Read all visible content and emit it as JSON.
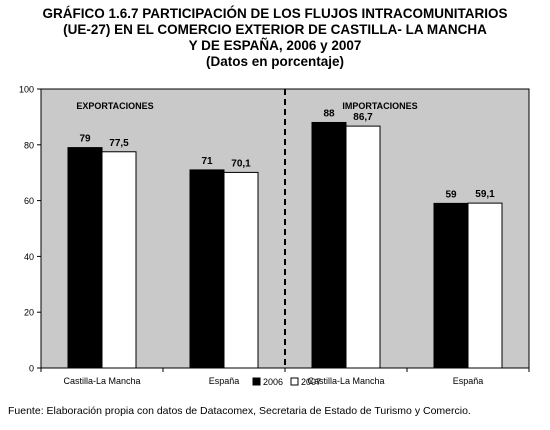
{
  "title_lines": [
    "GRÁFICO 1.6.7 PARTICIPACIÓN DE LOS FLUJOS INTRACOMUNITARIOS",
    "(UE-27) EN EL COMERCIO EXTERIOR DE CASTILLA- LA MANCHA",
    "Y DE ESPAÑA, 2006 y 2007",
    "(Datos en porcentaje)"
  ],
  "source": "Fuente: Elaboración propia con datos de Datacomex, Secretaria de Estado de Turismo y Comercio.",
  "chart_data": {
    "type": "bar",
    "ylim": [
      0,
      100
    ],
    "yticks": [
      0,
      20,
      40,
      60,
      80,
      100
    ],
    "grid": false,
    "legend_position": "bottom",
    "panels": [
      {
        "label": "EXPORTACIONES"
      },
      {
        "label": "IMPORTACIONES"
      }
    ],
    "categories": [
      "Castilla-La Mancha",
      "España",
      "Castilla-La Mancha",
      "España"
    ],
    "series": [
      {
        "name": "2006",
        "values": [
          79,
          71,
          88,
          59
        ],
        "labels": [
          "79",
          "71",
          "88",
          "59"
        ],
        "color": "#000000"
      },
      {
        "name": "2007",
        "values": [
          77.5,
          70.1,
          86.7,
          59.1
        ],
        "labels": [
          "77,5",
          "70,1",
          "86,7",
          "59,1"
        ],
        "color": "#ffffff"
      }
    ],
    "colors": {
      "plot_background": "#c9c9c9",
      "bar_stroke": "#000000"
    }
  }
}
